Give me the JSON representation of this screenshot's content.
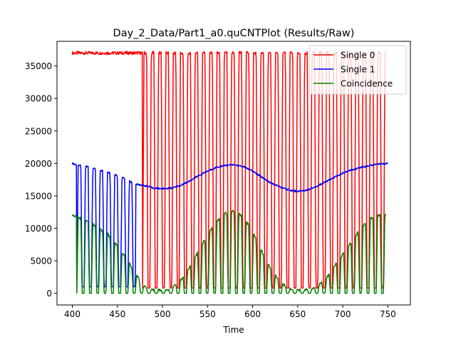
{
  "chart_data": {
    "type": "line",
    "title": "Day_2_Data/Part1_a0.quCNTPlot (Results/Raw)",
    "xlabel": "Time",
    "ylabel": "",
    "xlim": [
      383,
      775
    ],
    "ylim": [
      -1800,
      38800
    ],
    "x_ticks": [
      400,
      450,
      500,
      550,
      600,
      650,
      700,
      750
    ],
    "y_ticks": [
      0,
      5000,
      10000,
      15000,
      20000,
      25000,
      30000,
      35000
    ],
    "x_tick_labels": [
      "400",
      "450",
      "500",
      "550",
      "600",
      "650",
      "700",
      "750"
    ],
    "y_tick_labels": [
      "0",
      "5000",
      "10000",
      "15000",
      "20000",
      "25000",
      "30000",
      "35000"
    ],
    "grid": false,
    "legend_position": "top-right",
    "series": [
      {
        "name": "Single 0",
        "color": "#ff0000",
        "description": "Approximately 37000 flat from 400 to 475, then periodic dips to about 800 every ~8 time units until 748",
        "base": 37000,
        "flat_until": 475,
        "dip_value": 800,
        "dip_period": 8.1,
        "dip_start": 478,
        "x_end": 748
      },
      {
        "name": "Single 1",
        "color": "#0000ff",
        "description": "Dips to ~1000 every ~8 units between 400 and 470, then a smooth wave between about 16000 and 20000 until 750",
        "points": [
          [
            400,
            20000
          ],
          [
            405,
            19800
          ],
          [
            410,
            19700
          ],
          [
            420,
            19400
          ],
          [
            430,
            19000
          ],
          [
            440,
            18600
          ],
          [
            450,
            18100
          ],
          [
            460,
            17500
          ],
          [
            470,
            16800
          ],
          [
            480,
            16600
          ],
          [
            490,
            16200
          ],
          [
            500,
            16100
          ],
          [
            510,
            16200
          ],
          [
            520,
            16600
          ],
          [
            530,
            17300
          ],
          [
            540,
            18100
          ],
          [
            550,
            18800
          ],
          [
            560,
            19400
          ],
          [
            570,
            19700
          ],
          [
            578,
            19800
          ],
          [
            590,
            19500
          ],
          [
            600,
            18800
          ],
          [
            610,
            17900
          ],
          [
            620,
            17000
          ],
          [
            630,
            16400
          ],
          [
            640,
            15900
          ],
          [
            650,
            15700
          ],
          [
            660,
            15900
          ],
          [
            670,
            16400
          ],
          [
            680,
            17100
          ],
          [
            690,
            17800
          ],
          [
            700,
            18500
          ],
          [
            710,
            19000
          ],
          [
            720,
            19400
          ],
          [
            730,
            19700
          ],
          [
            740,
            19900
          ],
          [
            750,
            20000
          ]
        ],
        "dip_value": 1000,
        "dip_period": 8.1,
        "dip_start": 405,
        "dip_end": 470
      },
      {
        "name": "Coincidence",
        "color": "#008000",
        "description": "Oscillates between 0 and a slowly varying envelope (max ~12000 near 400, ~500 near 500, ~12500 near 575, ~500 near 650, ~12000 near 748)",
        "envelope": [
          [
            400,
            12000
          ],
          [
            420,
            11000
          ],
          [
            440,
            9000
          ],
          [
            460,
            5500
          ],
          [
            470,
            3000
          ],
          [
            480,
            1000
          ],
          [
            490,
            500
          ],
          [
            500,
            500
          ],
          [
            510,
            700
          ],
          [
            520,
            2000
          ],
          [
            530,
            4000
          ],
          [
            540,
            6500
          ],
          [
            550,
            9000
          ],
          [
            560,
            11000
          ],
          [
            570,
            12300
          ],
          [
            580,
            12700
          ],
          [
            590,
            11800
          ],
          [
            600,
            9500
          ],
          [
            610,
            6500
          ],
          [
            620,
            3800
          ],
          [
            630,
            1800
          ],
          [
            640,
            700
          ],
          [
            650,
            500
          ],
          [
            660,
            600
          ],
          [
            670,
            900
          ],
          [
            680,
            2000
          ],
          [
            690,
            4000
          ],
          [
            700,
            6000
          ],
          [
            710,
            8000
          ],
          [
            720,
            10000
          ],
          [
            730,
            11500
          ],
          [
            740,
            12000
          ],
          [
            748,
            12200
          ]
        ],
        "dip_value": 0,
        "dip_period": 8.1,
        "dip_start": 405,
        "x_end": 748
      }
    ]
  }
}
